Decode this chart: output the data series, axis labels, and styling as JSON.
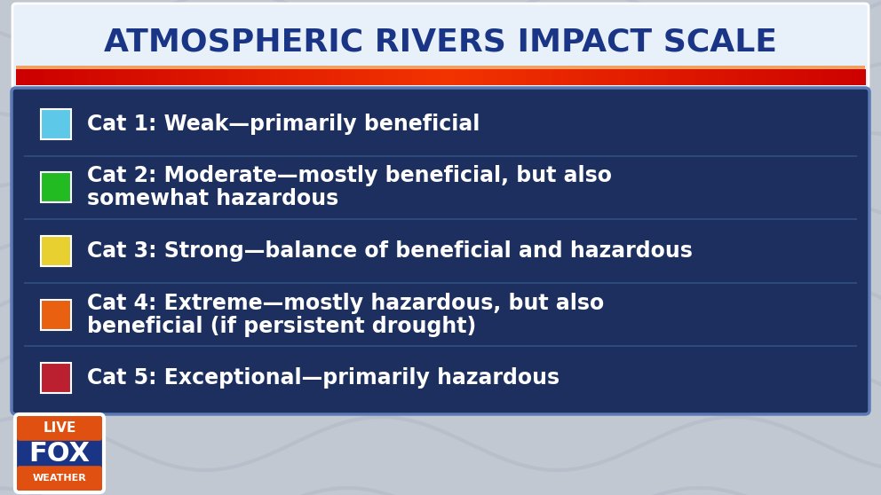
{
  "title": "ATMOSPHERIC RIVERS IMPACT SCALE",
  "title_color": "#1a3585",
  "title_fontsize": 26,
  "background_color": "#c2c8d2",
  "panel_bg_color": "#1c2f5e",
  "panel_border_color": "#5a7ab5",
  "title_bg_top": "#e8f0fa",
  "title_bg_bottom": "#b8cce8",
  "accent_colors": [
    "#cc3300",
    "#dd5500",
    "#e86820",
    "#dd5500",
    "#cc3300"
  ],
  "categories": [
    {
      "label_line1": "Cat 1: Weak—primarily beneficial",
      "label_line2": "",
      "color": "#5ec8e8",
      "multiline": false
    },
    {
      "label_line1": "Cat 2: Moderate—mostly beneficial, but also",
      "label_line2": "somewhat hazardous",
      "color": "#22bb22",
      "multiline": true
    },
    {
      "label_line1": "Cat 3: Strong—balance of beneficial and hazardous",
      "label_line2": "",
      "color": "#e8d030",
      "multiline": false
    },
    {
      "label_line1": "Cat 4: Extreme—mostly hazardous, but also",
      "label_line2": "beneficial (if persistent drought)",
      "color": "#e86010",
      "multiline": true
    },
    {
      "label_line1": "Cat 5: Exceptional—primarily hazardous",
      "label_line2": "",
      "color": "#bb2030",
      "multiline": false
    }
  ],
  "text_color": "#ffffff",
  "row_text_fontsize": 17,
  "divider_color": "#2e4a7a",
  "swirl_color": "#adb5c2",
  "logo_orange": "#e05010",
  "logo_blue": "#1a3585",
  "logo_white": "#ffffff"
}
